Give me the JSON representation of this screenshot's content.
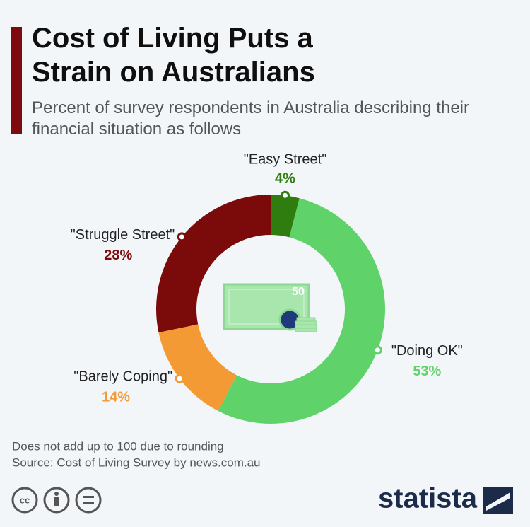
{
  "chart_data": {
    "type": "pie",
    "title": "Cost of Living Puts a Strain on Australians",
    "subtitle": "Percent of survey respondents in Australia describing their financial situation as follows",
    "categories": [
      "\"Easy Street\"",
      "\"Doing OK\"",
      "\"Barely Coping\"",
      "\"Struggle Street\""
    ],
    "values": [
      4,
      53,
      14,
      28
    ],
    "value_labels": [
      "4%",
      "53%",
      "14%",
      "28%"
    ],
    "colors": [
      "#2f7d0e",
      "#5fd36a",
      "#f39a34",
      "#7b0a0a"
    ],
    "center_icon_text": "50",
    "notes": [
      "Does not add up to 100 due to rounding",
      "Source: Cost of Living Survey by news.com.au"
    ]
  },
  "footer": {
    "license": "cc",
    "brand": "statista"
  }
}
